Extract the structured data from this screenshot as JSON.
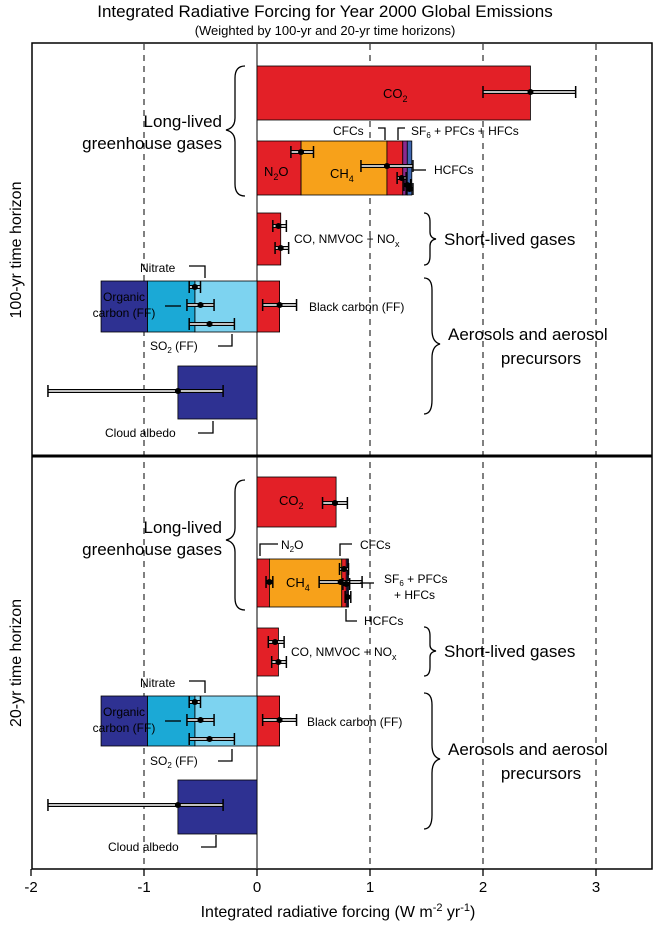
{
  "colors": {
    "co2": "#e32027",
    "n2o": "#e32027",
    "ch4": "#f7a11a",
    "cfcs": "#e32027",
    "hcfcs": "#8b2a8f",
    "sf6": "#3f67b1",
    "short": "#e32027",
    "bc": "#e32027",
    "nitrate": "#7dd3f0",
    "oc": "#1ba9d6",
    "so2": "#2e3192",
    "cloud": "#2e3192"
  },
  "chart_data": {
    "type": "bar",
    "orientation": "horizontal",
    "stacked": true,
    "title": "Integrated Radiative Forcing for Year 2000 Global Emissions",
    "subtitle": "(Weighted by 100-yr and 20-yr time horizons)",
    "xlabel_main": "Integrated radiative forcing (W m",
    "xlabel_sup1": "-2",
    "xlabel_mid": " yr",
    "xlabel_sup2": "-1",
    "xlabel_end": ")",
    "xlim": [
      -2,
      3.5
    ],
    "xticks": [
      -2,
      -1,
      0,
      1,
      2,
      3
    ],
    "xtick_labels": [
      "-2",
      "-1",
      "0",
      "1",
      "2",
      "3"
    ],
    "grid_dashed_at": [
      -1,
      1,
      2,
      3
    ],
    "panels": [
      {
        "ylabel": "100-yr time horizon",
        "group_long": "Long-lived\ngreenhouse gases",
        "group_short": "Short-lived gases",
        "group_aer": "Aerosols and aerosol\nprecursors",
        "bars": [
          {
            "segments": [
              {
                "species": "CO2",
                "value": 2.42,
                "color": "co2"
              }
            ],
            "errors": [
              {
                "value": 2.42,
                "low": 2.0,
                "high": 2.82
              }
            ]
          },
          {
            "segments": [
              {
                "species": "N2O",
                "value": 0.39,
                "color": "n2o"
              },
              {
                "species": "CH4",
                "value": 0.76,
                "color": "ch4"
              },
              {
                "species": "CFCs",
                "value": 0.14,
                "color": "cfcs"
              },
              {
                "species": "HCFCs",
                "value": 0.04,
                "color": "hcfcs"
              },
              {
                "species": "SF6 + PFCs + HFCs",
                "value": 0.04,
                "color": "sf6"
              }
            ],
            "errors": [
              {
                "value": 0.39,
                "low": 0.3,
                "high": 0.5
              },
              {
                "value": 1.15,
                "low": 0.92,
                "high": 1.38
              },
              {
                "value": 1.28,
                "low": 1.24,
                "high": 1.32
              },
              {
                "value": 1.33,
                "low": 1.3,
                "high": 1.36
              },
              {
                "value": 1.35,
                "low": 1.32,
                "high": 1.38
              }
            ]
          },
          {
            "segments": [
              {
                "species": "CO, NMVOC + NOx",
                "value": 0.21,
                "color": "short"
              }
            ],
            "errors": [
              {
                "value": 0.19,
                "low": 0.14,
                "high": 0.26
              },
              {
                "value": 0.21,
                "low": 0.16,
                "high": 0.28
              }
            ]
          },
          {
            "segments": [
              {
                "species": "Black carbon (FF)",
                "value": 0.2,
                "color": "bc"
              },
              {
                "species": "Nitrate",
                "value": -0.55,
                "color": "nitrate"
              },
              {
                "species": "Organic carbon (FF)",
                "value": -0.42,
                "color": "oc"
              },
              {
                "species": "SO2 (FF)",
                "value": -0.41,
                "color": "so2"
              }
            ],
            "errors": [
              {
                "value": 0.2,
                "low": 0.05,
                "high": 0.35
              },
              {
                "value": -0.55,
                "low": -0.6,
                "high": -0.5
              },
              {
                "value": -0.5,
                "low": -0.62,
                "high": -0.38
              },
              {
                "value": -0.42,
                "low": -0.6,
                "high": -0.2
              }
            ]
          },
          {
            "segments": [
              {
                "species": "Cloud albedo",
                "value": -0.7,
                "color": "cloud"
              }
            ],
            "errors": [
              {
                "value": -0.7,
                "low": -1.85,
                "high": -0.3
              }
            ]
          }
        ]
      },
      {
        "ylabel": "20-yr time horizon",
        "group_long": "Long-lived\ngreenhouse gases",
        "group_short": "Short-lived gases",
        "group_aer": "Aerosols and aerosol\nprecursors",
        "bars": [
          {
            "segments": [
              {
                "species": "CO2",
                "value": 0.7,
                "color": "co2"
              }
            ],
            "errors": [
              {
                "value": 0.69,
                "low": 0.58,
                "high": 0.8
              }
            ]
          },
          {
            "segments": [
              {
                "species": "N2O",
                "value": 0.11,
                "color": "n2o"
              },
              {
                "species": "CH4",
                "value": 0.64,
                "color": "ch4"
              },
              {
                "species": "CFCs",
                "value": 0.04,
                "color": "cfcs"
              },
              {
                "species": "HCFCs",
                "value": 0.01,
                "color": "hcfcs"
              },
              {
                "species": "SF6 + PFCs + HFCs",
                "value": 0.01,
                "color": "sf6"
              }
            ],
            "errors": [
              {
                "value": 0.11,
                "low": 0.08,
                "high": 0.14
              },
              {
                "value": 0.74,
                "low": 0.55,
                "high": 0.93
              },
              {
                "value": 0.77,
                "low": 0.73,
                "high": 0.81
              },
              {
                "value": 0.79,
                "low": 0.76,
                "high": 0.82
              },
              {
                "value": 0.8,
                "low": 0.78,
                "high": 0.83
              }
            ]
          },
          {
            "segments": [
              {
                "species": "CO, NMVOC + NOx",
                "value": 0.19,
                "color": "short"
              }
            ],
            "errors": [
              {
                "value": 0.16,
                "low": 0.1,
                "high": 0.24
              },
              {
                "value": 0.19,
                "low": 0.13,
                "high": 0.26
              }
            ]
          },
          {
            "segments": [
              {
                "species": "Black carbon (FF)",
                "value": 0.2,
                "color": "bc"
              },
              {
                "species": "Nitrate",
                "value": -0.55,
                "color": "nitrate"
              },
              {
                "species": "Organic carbon (FF)",
                "value": -0.42,
                "color": "oc"
              },
              {
                "species": "SO2 (FF)",
                "value": -0.41,
                "color": "so2"
              }
            ],
            "errors": [
              {
                "value": 0.2,
                "low": 0.05,
                "high": 0.35
              },
              {
                "value": -0.55,
                "low": -0.6,
                "high": -0.5
              },
              {
                "value": -0.5,
                "low": -0.62,
                "high": -0.38
              },
              {
                "value": -0.42,
                "low": -0.6,
                "high": -0.2
              }
            ]
          },
          {
            "segments": [
              {
                "species": "Cloud albedo",
                "value": -0.7,
                "color": "cloud"
              }
            ],
            "errors": [
              {
                "value": -0.7,
                "low": -1.85,
                "high": -0.3
              }
            ]
          }
        ]
      }
    ]
  },
  "labels": {
    "co2_base": "CO",
    "co2_sub": "2",
    "n2o_base": "N",
    "n2o_sub": "2",
    "n2o_tail": "O",
    "ch4_base": "CH",
    "ch4_sub": "4",
    "cfcs": "CFCs",
    "hcfcs": "HCFCs",
    "sf6_base": "SF",
    "sf6_sub": "6",
    "sf6_tail": " + PFCs + HFCs",
    "sf6_tail_a": " + PFCs",
    "sf6_tail_b": "+ HFCs",
    "co_nmvoc_base": "CO, NMVOC + NO",
    "co_nmvoc_sub": "x",
    "nitrate": "Nitrate",
    "organic_1": "Organic",
    "organic_2": "carbon (FF)",
    "so2_base": "SO",
    "so2_sub": "2",
    "so2_tail": " (FF)",
    "black_carbon": "Black carbon (FF)",
    "cloud_albedo": "Cloud albedo"
  }
}
